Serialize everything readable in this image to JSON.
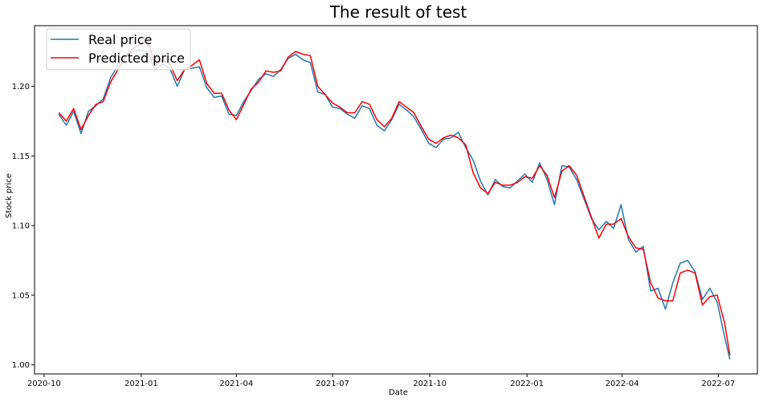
{
  "chart_data": {
    "type": "line",
    "title": "The result of test",
    "xlabel": "Date",
    "ylabel": "Stock price",
    "x_range": [
      "2020-09-22",
      "2022-08-07"
    ],
    "ylim": [
      0.9935,
      1.2435
    ],
    "x_ticks": [
      "2020-10",
      "2021-01",
      "2021-04",
      "2021-07",
      "2021-10",
      "2022-01",
      "2022-04",
      "2022-07"
    ],
    "y_ticks": [
      "1.00",
      "1.05",
      "1.10",
      "1.15",
      "1.20"
    ],
    "grid": false,
    "legend": "top-left",
    "series": [
      {
        "name": "Real price",
        "color": "#1f77b4",
        "points": [
          [
            "2020-10-15",
            1.18
          ],
          [
            "2020-10-22",
            1.172
          ],
          [
            "2020-10-29",
            1.182
          ],
          [
            "2020-11-05",
            1.166
          ],
          [
            "2020-11-12",
            1.182
          ],
          [
            "2020-11-19",
            1.186
          ],
          [
            "2020-11-26",
            1.191
          ],
          [
            "2020-12-03",
            1.206
          ],
          [
            "2020-12-10",
            1.215
          ],
          [
            "2020-12-17",
            1.223
          ],
          [
            "2020-12-24",
            1.225
          ],
          [
            "2020-12-31",
            1.226
          ],
          [
            "2021-01-07",
            1.225
          ],
          [
            "2021-01-14",
            1.212
          ],
          [
            "2021-01-21",
            1.216
          ],
          [
            "2021-01-28",
            1.213
          ],
          [
            "2021-02-04",
            1.2
          ],
          [
            "2021-02-11",
            1.212
          ],
          [
            "2021-02-18",
            1.213
          ],
          [
            "2021-02-25",
            1.214
          ],
          [
            "2021-03-04",
            1.199
          ],
          [
            "2021-03-11",
            1.192
          ],
          [
            "2021-03-18",
            1.193
          ],
          [
            "2021-03-25",
            1.18
          ],
          [
            "2021-04-01",
            1.179
          ],
          [
            "2021-04-08",
            1.189
          ],
          [
            "2021-04-15",
            1.197
          ],
          [
            "2021-04-22",
            1.205
          ],
          [
            "2021-04-29",
            1.209
          ],
          [
            "2021-05-06",
            1.207
          ],
          [
            "2021-05-13",
            1.212
          ],
          [
            "2021-05-20",
            1.22
          ],
          [
            "2021-05-27",
            1.223
          ],
          [
            "2021-06-03",
            1.219
          ],
          [
            "2021-06-10",
            1.217
          ],
          [
            "2021-06-17",
            1.196
          ],
          [
            "2021-06-24",
            1.194
          ],
          [
            "2021-07-01",
            1.185
          ],
          [
            "2021-07-08",
            1.184
          ],
          [
            "2021-07-15",
            1.18
          ],
          [
            "2021-07-22",
            1.177
          ],
          [
            "2021-07-29",
            1.186
          ],
          [
            "2021-08-05",
            1.184
          ],
          [
            "2021-08-12",
            1.172
          ],
          [
            "2021-08-19",
            1.168
          ],
          [
            "2021-08-26",
            1.176
          ],
          [
            "2021-09-02",
            1.187
          ],
          [
            "2021-09-09",
            1.183
          ],
          [
            "2021-09-16",
            1.178
          ],
          [
            "2021-09-23",
            1.169
          ],
          [
            "2021-09-30",
            1.159
          ],
          [
            "2021-10-07",
            1.156
          ],
          [
            "2021-10-14",
            1.162
          ],
          [
            "2021-10-21",
            1.163
          ],
          [
            "2021-10-28",
            1.167
          ],
          [
            "2021-11-04",
            1.156
          ],
          [
            "2021-11-11",
            1.147
          ],
          [
            "2021-11-18",
            1.132
          ],
          [
            "2021-11-25",
            1.122
          ],
          [
            "2021-12-02",
            1.133
          ],
          [
            "2021-12-09",
            1.128
          ],
          [
            "2021-12-16",
            1.127
          ],
          [
            "2021-12-23",
            1.132
          ],
          [
            "2021-12-30",
            1.137
          ],
          [
            "2022-01-06",
            1.131
          ],
          [
            "2022-01-13",
            1.145
          ],
          [
            "2022-01-20",
            1.133
          ],
          [
            "2022-01-27",
            1.115
          ],
          [
            "2022-02-03",
            1.143
          ],
          [
            "2022-02-10",
            1.142
          ],
          [
            "2022-02-17",
            1.133
          ],
          [
            "2022-02-24",
            1.119
          ],
          [
            "2022-03-03",
            1.105
          ],
          [
            "2022-03-10",
            1.097
          ],
          [
            "2022-03-17",
            1.103
          ],
          [
            "2022-03-24",
            1.098
          ],
          [
            "2022-03-31",
            1.115
          ],
          [
            "2022-04-07",
            1.09
          ],
          [
            "2022-04-14",
            1.081
          ],
          [
            "2022-04-21",
            1.085
          ],
          [
            "2022-04-28",
            1.053
          ],
          [
            "2022-05-05",
            1.055
          ],
          [
            "2022-05-12",
            1.04
          ],
          [
            "2022-05-19",
            1.059
          ],
          [
            "2022-05-26",
            1.073
          ],
          [
            "2022-06-02",
            1.075
          ],
          [
            "2022-06-09",
            1.067
          ],
          [
            "2022-06-16",
            1.047
          ],
          [
            "2022-06-23",
            1.055
          ],
          [
            "2022-06-30",
            1.045
          ],
          [
            "2022-07-07",
            1.02
          ],
          [
            "2022-07-12",
            1.004
          ]
        ]
      },
      {
        "name": "Predicted price",
        "color": "#ff0000",
        "points": [
          [
            "2020-10-15",
            1.181
          ],
          [
            "2020-10-22",
            1.175
          ],
          [
            "2020-10-29",
            1.184
          ],
          [
            "2020-11-05",
            1.169
          ],
          [
            "2020-11-12",
            1.179
          ],
          [
            "2020-11-19",
            1.187
          ],
          [
            "2020-11-26",
            1.189
          ],
          [
            "2020-12-03",
            1.203
          ],
          [
            "2020-12-10",
            1.212
          ],
          [
            "2020-12-17",
            1.221
          ],
          [
            "2020-12-24",
            1.227
          ],
          [
            "2020-12-31",
            1.23
          ],
          [
            "2021-01-07",
            1.233
          ],
          [
            "2021-01-14",
            1.215
          ],
          [
            "2021-01-21",
            1.219
          ],
          [
            "2021-01-28",
            1.216
          ],
          [
            "2021-02-04",
            1.204
          ],
          [
            "2021-02-11",
            1.212
          ],
          [
            "2021-02-18",
            1.215
          ],
          [
            "2021-02-25",
            1.219
          ],
          [
            "2021-03-04",
            1.202
          ],
          [
            "2021-03-11",
            1.195
          ],
          [
            "2021-03-18",
            1.195
          ],
          [
            "2021-03-25",
            1.183
          ],
          [
            "2021-04-01",
            1.176
          ],
          [
            "2021-04-08",
            1.187
          ],
          [
            "2021-04-15",
            1.198
          ],
          [
            "2021-04-22",
            1.203
          ],
          [
            "2021-04-29",
            1.211
          ],
          [
            "2021-05-06",
            1.21
          ],
          [
            "2021-05-13",
            1.211
          ],
          [
            "2021-05-20",
            1.221
          ],
          [
            "2021-05-27",
            1.225
          ],
          [
            "2021-06-03",
            1.223
          ],
          [
            "2021-06-10",
            1.222
          ],
          [
            "2021-06-17",
            1.2
          ],
          [
            "2021-06-24",
            1.194
          ],
          [
            "2021-07-01",
            1.188
          ],
          [
            "2021-07-08",
            1.185
          ],
          [
            "2021-07-15",
            1.181
          ],
          [
            "2021-07-22",
            1.181
          ],
          [
            "2021-07-29",
            1.189
          ],
          [
            "2021-08-05",
            1.187
          ],
          [
            "2021-08-12",
            1.176
          ],
          [
            "2021-08-19",
            1.171
          ],
          [
            "2021-08-26",
            1.177
          ],
          [
            "2021-09-02",
            1.189
          ],
          [
            "2021-09-09",
            1.185
          ],
          [
            "2021-09-16",
            1.181
          ],
          [
            "2021-09-23",
            1.171
          ],
          [
            "2021-09-30",
            1.162
          ],
          [
            "2021-10-07",
            1.159
          ],
          [
            "2021-10-14",
            1.163
          ],
          [
            "2021-10-21",
            1.165
          ],
          [
            "2021-10-28",
            1.163
          ],
          [
            "2021-11-04",
            1.158
          ],
          [
            "2021-11-11",
            1.138
          ],
          [
            "2021-11-18",
            1.127
          ],
          [
            "2021-11-25",
            1.123
          ],
          [
            "2021-12-02",
            1.131
          ],
          [
            "2021-12-09",
            1.129
          ],
          [
            "2021-12-16",
            1.129
          ],
          [
            "2021-12-23",
            1.131
          ],
          [
            "2021-12-30",
            1.135
          ],
          [
            "2022-01-06",
            1.134
          ],
          [
            "2022-01-13",
            1.143
          ],
          [
            "2022-01-20",
            1.136
          ],
          [
            "2022-01-27",
            1.12
          ],
          [
            "2022-02-03",
            1.139
          ],
          [
            "2022-02-10",
            1.143
          ],
          [
            "2022-02-17",
            1.136
          ],
          [
            "2022-02-24",
            1.121
          ],
          [
            "2022-03-03",
            1.106
          ],
          [
            "2022-03-10",
            1.091
          ],
          [
            "2022-03-17",
            1.101
          ],
          [
            "2022-03-24",
            1.101
          ],
          [
            "2022-03-31",
            1.105
          ],
          [
            "2022-04-07",
            1.092
          ],
          [
            "2022-04-14",
            1.084
          ],
          [
            "2022-04-21",
            1.083
          ],
          [
            "2022-04-28",
            1.059
          ],
          [
            "2022-05-05",
            1.048
          ],
          [
            "2022-05-12",
            1.046
          ],
          [
            "2022-05-19",
            1.046
          ],
          [
            "2022-05-26",
            1.066
          ],
          [
            "2022-06-02",
            1.068
          ],
          [
            "2022-06-09",
            1.066
          ],
          [
            "2022-06-16",
            1.043
          ],
          [
            "2022-06-23",
            1.049
          ],
          [
            "2022-06-30",
            1.05
          ],
          [
            "2022-07-07",
            1.03
          ],
          [
            "2022-07-12",
            1.007
          ]
        ]
      }
    ]
  }
}
